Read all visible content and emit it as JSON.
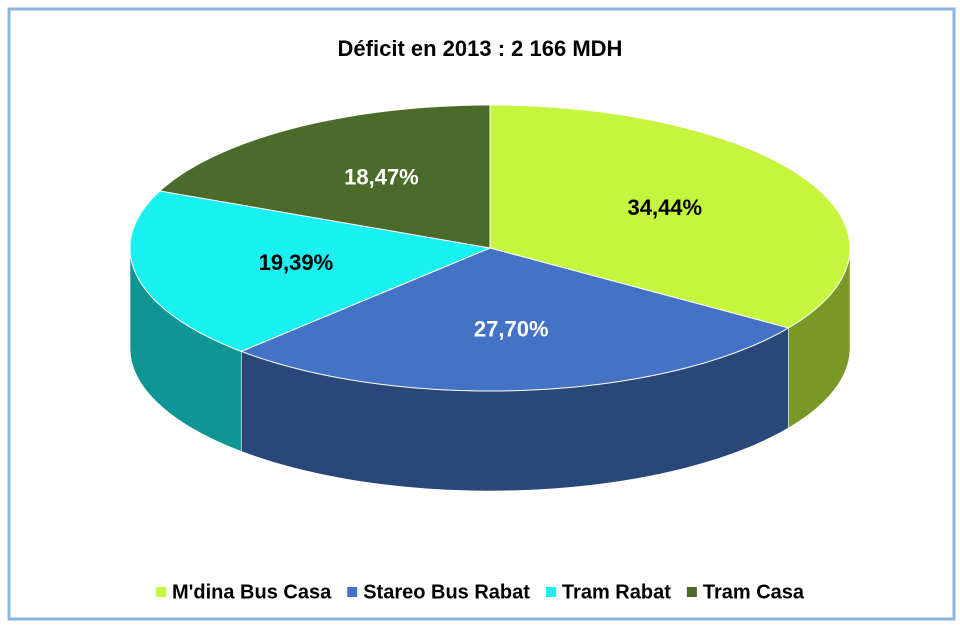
{
  "chart_data": {
    "type": "pie3d",
    "title": "Déficit en 2013 :  2 166 MDH",
    "categories": [
      "M'dina Bus Casa",
      "Stareo Bus Rabat",
      "Tram Rabat",
      "Tram Casa"
    ],
    "values": [
      34.44,
      27.7,
      19.39,
      18.47
    ],
    "value_labels": [
      "34,44%",
      "27,70%",
      "19,39%",
      "18,47%"
    ],
    "colors": [
      "#c5f53c",
      "#4472c4",
      "#19f0f0",
      "#4a6b2a"
    ],
    "legend": "bottom"
  }
}
